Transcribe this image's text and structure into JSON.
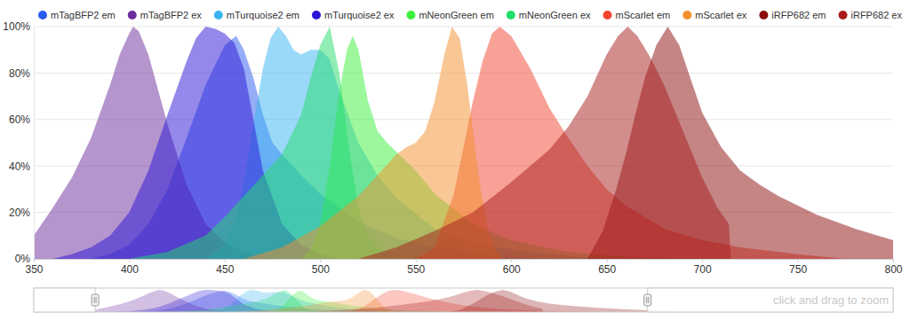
{
  "chart_data": {
    "type": "area",
    "legend": "top",
    "grid": true,
    "xlim": [
      350,
      800
    ],
    "xticks": [
      350,
      400,
      450,
      500,
      550,
      600,
      650,
      700,
      750,
      800
    ],
    "ylim": [
      0,
      100
    ],
    "yticks": [
      {
        "value": 0,
        "label": "0%"
      },
      {
        "value": 20,
        "label": "20%"
      },
      {
        "value": 40,
        "label": "40%"
      },
      {
        "value": 60,
        "label": "60%"
      },
      {
        "value": 80,
        "label": "80%"
      },
      {
        "value": 100,
        "label": "100%"
      }
    ],
    "navigator": {
      "xlim": [
        300,
        1000
      ],
      "label": "click and drag to zoom"
    },
    "series": [
      {
        "name": "mTagBFP2 em",
        "color": "#2b5cf0",
        "x": [
          380,
          390,
          400,
          410,
          420,
          430,
          440,
          450,
          456,
          460,
          465,
          470,
          475,
          480,
          490,
          500,
          510,
          520,
          540,
          560,
          580,
          600,
          620
        ],
        "values": [
          0,
          2,
          6,
          15,
          30,
          52,
          75,
          92,
          96,
          90,
          78,
          62,
          50,
          45,
          36,
          28,
          22,
          16,
          9,
          5,
          3,
          1,
          0
        ]
      },
      {
        "name": "mTagBFP2 ex",
        "color": "#6b2c9e",
        "x": [
          340,
          350,
          360,
          370,
          380,
          390,
          395,
          400,
          402,
          405,
          410,
          420,
          430,
          440,
          450,
          460,
          470,
          480
        ],
        "values": [
          5,
          10,
          22,
          35,
          52,
          75,
          88,
          97,
          100,
          98,
          88,
          58,
          32,
          15,
          7,
          3,
          1,
          0
        ]
      },
      {
        "name": "mTurquoise2 em",
        "color": "#38b4f2",
        "x": [
          440,
          450,
          455,
          460,
          465,
          470,
          474,
          478,
          482,
          486,
          490,
          495,
          500,
          505,
          510,
          520,
          530,
          540,
          560,
          580,
          600,
          620,
          650
        ],
        "values": [
          0,
          6,
          15,
          32,
          58,
          82,
          95,
          100,
          96,
          90,
          88,
          90,
          90,
          86,
          72,
          50,
          36,
          26,
          13,
          7,
          4,
          2,
          0
        ]
      },
      {
        "name": "mTurquoise2 ex",
        "color": "#2a14d6",
        "x": [
          360,
          370,
          380,
          390,
          400,
          410,
          420,
          430,
          435,
          440,
          445,
          450,
          455,
          460,
          465,
          470,
          480,
          490,
          500,
          510
        ],
        "values": [
          0,
          2,
          5,
          10,
          20,
          38,
          62,
          85,
          95,
          100,
          99,
          97,
          93,
          82,
          60,
          38,
          15,
          6,
          2,
          0
        ]
      },
      {
        "name": "mNeonGreen em",
        "color": "#3cf03c",
        "x": [
          490,
          495,
          500,
          505,
          510,
          514,
          517,
          520,
          525,
          530,
          535,
          540,
          550,
          560,
          580,
          600,
          630,
          660,
          700
        ],
        "values": [
          0,
          4,
          15,
          40,
          72,
          90,
          96,
          90,
          68,
          55,
          50,
          46,
          38,
          28,
          15,
          8,
          3,
          1,
          0
        ]
      },
      {
        "name": "mNeonGreen ex",
        "color": "#22dd6a",
        "x": [
          400,
          420,
          440,
          450,
          460,
          470,
          480,
          490,
          495,
          500,
          505,
          510,
          515,
          520,
          525,
          530,
          540,
          550
        ],
        "values": [
          0,
          3,
          10,
          18,
          27,
          36,
          45,
          62,
          78,
          92,
          100,
          80,
          48,
          22,
          10,
          5,
          1,
          0
        ]
      },
      {
        "name": "mScarlet em",
        "color": "#f2462f",
        "x": [
          550,
          560,
          570,
          580,
          585,
          590,
          594,
          600,
          610,
          620,
          630,
          640,
          650,
          660,
          680,
          700,
          720,
          750,
          775
        ],
        "values": [
          0,
          5,
          28,
          68,
          85,
          97,
          100,
          96,
          82,
          65,
          52,
          40,
          30,
          23,
          13,
          8,
          5,
          2,
          0
        ]
      },
      {
        "name": "mScarlet ex",
        "color": "#f4902c",
        "x": [
          460,
          480,
          500,
          520,
          530,
          540,
          545,
          550,
          555,
          560,
          565,
          569,
          573,
          577,
          580,
          584,
          588,
          592,
          596
        ],
        "values": [
          0,
          5,
          14,
          27,
          36,
          45,
          48,
          50,
          55,
          68,
          88,
          100,
          95,
          75,
          55,
          30,
          12,
          3,
          0
        ]
      },
      {
        "name": "iRFP682 em",
        "color": "#8b0c0c",
        "x": [
          640,
          648,
          655,
          660,
          665,
          670,
          676,
          682,
          688,
          695,
          700,
          710,
          720,
          730,
          740,
          760,
          780,
          800,
          820
        ],
        "values": [
          0,
          12,
          30,
          45,
          62,
          78,
          92,
          100,
          92,
          75,
          63,
          48,
          38,
          32,
          27,
          19,
          13,
          8,
          5
        ]
      },
      {
        "name": "iRFP682 ex",
        "color": "#a81c1c",
        "x": [
          520,
          540,
          560,
          580,
          600,
          620,
          630,
          640,
          650,
          656,
          661,
          666,
          672,
          680,
          690,
          700,
          708,
          714,
          715
        ],
        "values": [
          0,
          5,
          12,
          20,
          33,
          47,
          57,
          70,
          88,
          96,
          100,
          96,
          88,
          75,
          55,
          35,
          22,
          15,
          0
        ]
      }
    ]
  }
}
